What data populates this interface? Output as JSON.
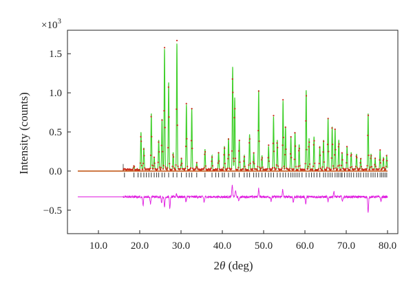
{
  "chart_data": {
    "type": "line",
    "title": "",
    "xlabel": "2θ (deg)",
    "ylabel": "Intensity (counts)",
    "y_multiplier_label": "×10",
    "y_multiplier_exponent": "3",
    "xlim": [
      2.5,
      82.5
    ],
    "ylim": [
      -0.8,
      1.8
    ],
    "x_ticks": [
      10,
      20,
      30,
      40,
      50,
      60,
      70,
      80
    ],
    "x_tick_labels": [
      "10.0",
      "20.0",
      "30.0",
      "40.0",
      "50.0",
      "60.0",
      "70.0",
      "80.0"
    ],
    "y_ticks": [
      -0.5,
      0.0,
      0.5,
      1.0,
      1.5
    ],
    "y_tick_labels": [
      "−0.5",
      "0.0",
      "0.5",
      "1.0",
      "1.5"
    ],
    "grid": false,
    "legend": "none",
    "colors": {
      "observed": "#cc2a1a",
      "calculated": "#3fcf2a",
      "background": "#c25a1a",
      "difference": "#e01ee0",
      "reflection_marks": "#333333"
    },
    "baseline": 0.0,
    "data_start_x": 5.0,
    "measured_start_x": 16.0,
    "x_end": 80.0,
    "difference_offset": -0.33,
    "peaks": [
      {
        "x": 18.6,
        "y": 0.05
      },
      {
        "x": 20.3,
        "y": 0.48
      },
      {
        "x": 21.0,
        "y": 0.28
      },
      {
        "x": 22.8,
        "y": 0.72
      },
      {
        "x": 23.5,
        "y": 0.16
      },
      {
        "x": 24.6,
        "y": 0.38
      },
      {
        "x": 25.4,
        "y": 0.65
      },
      {
        "x": 26.0,
        "y": 1.55
      },
      {
        "x": 27.0,
        "y": 1.12
      },
      {
        "x": 28.1,
        "y": 0.22
      },
      {
        "x": 29.0,
        "y": 1.62
      },
      {
        "x": 30.1,
        "y": 0.15
      },
      {
        "x": 31.3,
        "y": 0.83
      },
      {
        "x": 32.6,
        "y": 0.78
      },
      {
        "x": 33.8,
        "y": 0.08
      },
      {
        "x": 35.8,
        "y": 0.26
      },
      {
        "x": 37.5,
        "y": 0.18
      },
      {
        "x": 39.1,
        "y": 0.22
      },
      {
        "x": 40.5,
        "y": 0.3
      },
      {
        "x": 41.5,
        "y": 0.4
      },
      {
        "x": 42.5,
        "y": 1.32
      },
      {
        "x": 43.0,
        "y": 0.92
      },
      {
        "x": 44.1,
        "y": 0.38
      },
      {
        "x": 45.3,
        "y": 0.18
      },
      {
        "x": 46.6,
        "y": 0.45
      },
      {
        "x": 47.6,
        "y": 0.22
      },
      {
        "x": 48.8,
        "y": 1.02
      },
      {
        "x": 49.6,
        "y": 0.18
      },
      {
        "x": 51.2,
        "y": 0.3
      },
      {
        "x": 52.4,
        "y": 0.68
      },
      {
        "x": 53.3,
        "y": 0.38
      },
      {
        "x": 54.7,
        "y": 0.88
      },
      {
        "x": 55.3,
        "y": 0.55
      },
      {
        "x": 56.6,
        "y": 0.42
      },
      {
        "x": 57.6,
        "y": 0.48
      },
      {
        "x": 58.6,
        "y": 0.32
      },
      {
        "x": 60.3,
        "y": 1.02
      },
      {
        "x": 61.0,
        "y": 0.4
      },
      {
        "x": 62.2,
        "y": 0.42
      },
      {
        "x": 63.6,
        "y": 0.3
      },
      {
        "x": 64.5,
        "y": 0.38
      },
      {
        "x": 65.6,
        "y": 0.66
      },
      {
        "x": 66.6,
        "y": 0.55
      },
      {
        "x": 67.3,
        "y": 0.52
      },
      {
        "x": 68.2,
        "y": 0.38
      },
      {
        "x": 69.0,
        "y": 0.22
      },
      {
        "x": 70.2,
        "y": 0.3
      },
      {
        "x": 71.2,
        "y": 0.22
      },
      {
        "x": 72.5,
        "y": 0.2
      },
      {
        "x": 73.5,
        "y": 0.14
      },
      {
        "x": 75.3,
        "y": 0.72
      },
      {
        "x": 76.0,
        "y": 0.2
      },
      {
        "x": 77.0,
        "y": 0.14
      },
      {
        "x": 78.2,
        "y": 0.25
      },
      {
        "x": 79.0,
        "y": 0.16
      },
      {
        "x": 79.8,
        "y": 0.18
      }
    ],
    "reflection_positions": [
      16.3,
      18.6,
      19.6,
      20.3,
      21.0,
      21.6,
      22.2,
      22.8,
      23.5,
      24.1,
      24.6,
      25.4,
      26.0,
      27.0,
      28.1,
      29.0,
      30.1,
      31.3,
      32.0,
      32.6,
      33.8,
      35.8,
      37.5,
      38.4,
      39.1,
      40.0,
      40.5,
      41.5,
      42.5,
      43.0,
      44.1,
      45.3,
      46.0,
      46.6,
      47.6,
      48.2,
      48.8,
      49.6,
      50.4,
      51.2,
      51.8,
      52.4,
      53.3,
      54.0,
      54.7,
      55.3,
      56.0,
      56.6,
      57.1,
      57.6,
      58.1,
      58.6,
      59.3,
      60.3,
      61.0,
      61.6,
      62.2,
      62.9,
      63.6,
      64.5,
      65.0,
      65.6,
      66.1,
      66.6,
      67.3,
      67.8,
      68.2,
      68.7,
      69.0,
      69.6,
      70.2,
      70.7,
      71.2,
      71.8,
      72.5,
      73.0,
      73.5,
      74.2,
      74.8,
      75.3,
      76.0,
      76.5,
      77.0,
      77.6,
      78.2,
      78.6,
      79.0,
      79.4,
      79.8
    ],
    "difference_features": [
      {
        "x": 20.8,
        "y": -0.11
      },
      {
        "x": 22.6,
        "y": -0.09
      },
      {
        "x": 25.3,
        "y": -0.07
      },
      {
        "x": 26.0,
        "y": -0.13
      },
      {
        "x": 27.3,
        "y": -0.15
      },
      {
        "x": 28.9,
        "y": 0.04
      },
      {
        "x": 31.2,
        "y": -0.06
      },
      {
        "x": 35.6,
        "y": -0.07
      },
      {
        "x": 42.4,
        "y": 0.16
      },
      {
        "x": 43.2,
        "y": 0.09
      },
      {
        "x": 44.0,
        "y": -0.06
      },
      {
        "x": 48.8,
        "y": 0.11
      },
      {
        "x": 51.8,
        "y": -0.05
      },
      {
        "x": 54.6,
        "y": 0.09
      },
      {
        "x": 57.2,
        "y": -0.07
      },
      {
        "x": 60.2,
        "y": -0.09
      },
      {
        "x": 65.6,
        "y": -0.07
      },
      {
        "x": 67.0,
        "y": 0.07
      },
      {
        "x": 69.1,
        "y": -0.06
      },
      {
        "x": 75.3,
        "y": -0.21
      },
      {
        "x": 78.4,
        "y": -0.06
      }
    ]
  }
}
